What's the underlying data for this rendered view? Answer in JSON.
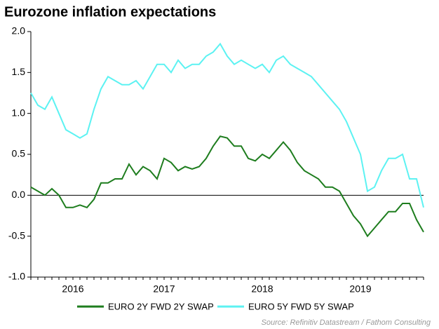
{
  "chart_data": {
    "type": "line",
    "title": "Eurozone inflation expectations",
    "source": "Source: Refinitiv Datastream / Fathom Consulting",
    "categories": [
      null,
      null,
      null,
      null,
      null,
      null,
      "2016",
      null,
      null,
      null,
      null,
      null,
      null,
      null,
      null,
      null,
      null,
      null,
      null,
      "2017",
      null,
      null,
      null,
      null,
      null,
      null,
      null,
      null,
      null,
      null,
      null,
      null,
      null,
      "2018",
      null,
      null,
      null,
      null,
      null,
      null,
      null,
      null,
      null,
      null,
      null,
      null,
      null,
      "2019",
      null,
      null,
      null,
      null,
      null,
      null,
      null,
      null,
      null
    ],
    "series": [
      {
        "name": "EURO 2Y FWD 2Y SWAP",
        "color": "#1e7d1e",
        "values": [
          0.1,
          0.05,
          0.0,
          0.08,
          0.0,
          -0.15,
          -0.15,
          -0.12,
          -0.15,
          -0.05,
          0.15,
          0.15,
          0.2,
          0.2,
          0.38,
          0.25,
          0.35,
          0.3,
          0.2,
          0.45,
          0.4,
          0.3,
          0.35,
          0.32,
          0.35,
          0.45,
          0.6,
          0.72,
          0.7,
          0.6,
          0.6,
          0.45,
          0.42,
          0.5,
          0.45,
          0.55,
          0.65,
          0.55,
          0.4,
          0.3,
          0.25,
          0.2,
          0.1,
          0.1,
          0.05,
          -0.1,
          -0.25,
          -0.35,
          -0.5,
          -0.4,
          -0.3,
          -0.2,
          -0.2,
          -0.1,
          -0.1,
          -0.3,
          -0.45
        ]
      },
      {
        "name": "EURO 5Y FWD 5Y SWAP",
        "color": "#5cf2f2",
        "values": [
          1.25,
          1.1,
          1.05,
          1.2,
          1.0,
          0.8,
          0.75,
          0.7,
          0.75,
          1.05,
          1.3,
          1.45,
          1.4,
          1.35,
          1.35,
          1.4,
          1.3,
          1.45,
          1.6,
          1.6,
          1.5,
          1.65,
          1.55,
          1.6,
          1.6,
          1.7,
          1.75,
          1.85,
          1.7,
          1.6,
          1.65,
          1.6,
          1.55,
          1.6,
          1.5,
          1.65,
          1.7,
          1.6,
          1.55,
          1.5,
          1.45,
          1.35,
          1.25,
          1.15,
          1.05,
          0.9,
          0.7,
          0.5,
          0.05,
          0.1,
          0.3,
          0.45,
          0.45,
          0.5,
          0.2,
          0.2,
          -0.15
        ]
      }
    ],
    "ylim": [
      -1.0,
      2.0
    ],
    "yticks": [
      {
        "value": 2.0,
        "label": "2.0"
      },
      1.5,
      {
        "value": 1.0,
        "label": "1.0"
      },
      0.5,
      {
        "value": 0.0,
        "label": "0.0"
      },
      -0.5,
      {
        "value": -1.0,
        "label": "-1.0"
      }
    ],
    "zero_line": true,
    "legend": "bottom"
  }
}
